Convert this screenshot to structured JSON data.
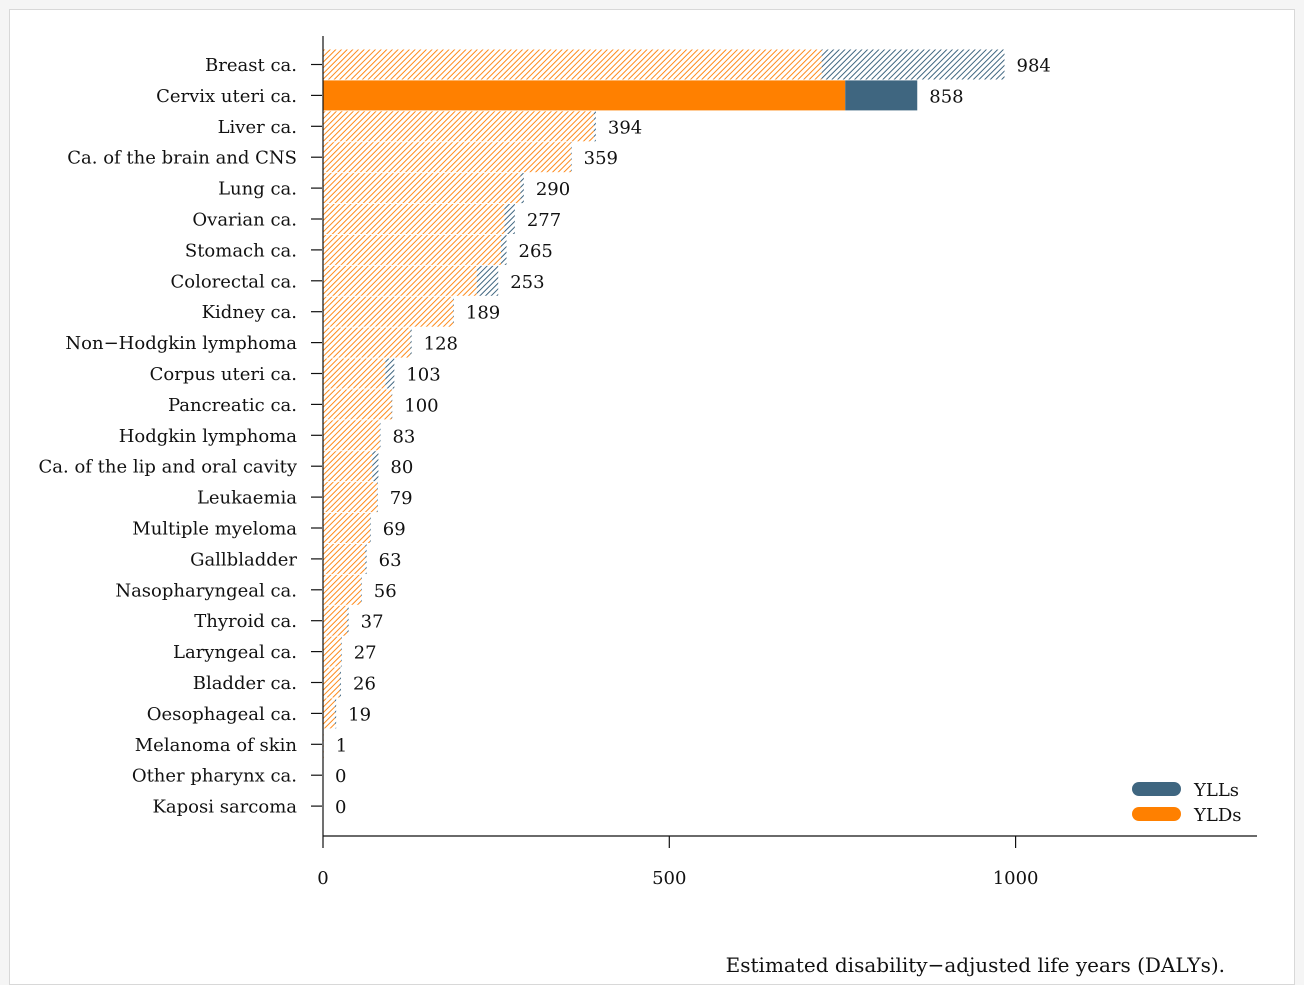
{
  "chart_data": {
    "type": "bar",
    "orientation": "horizontal",
    "stacked": true,
    "xlabel": "Estimated disability−adjusted life years (DALYs).",
    "xlim": [
      0,
      1350
    ],
    "xticks": [
      0,
      500,
      1000
    ],
    "legend_position": "bottom-right",
    "grid": false,
    "categories": [
      "Breast ca.",
      "Cervix uteri ca.",
      "Liver ca.",
      "Ca. of the brain and CNS",
      "Lung ca.",
      "Ovarian ca.",
      "Stomach ca.",
      "Colorectal ca.",
      "Kidney ca.",
      "Non−Hodgkin lymphoma",
      "Corpus uteri ca.",
      "Pancreatic ca.",
      "Hodgkin lymphoma",
      "Ca. of the lip and oral cavity",
      "Leukaemia",
      "Multiple myeloma",
      "Gallbladder",
      "Nasopharyngeal ca.",
      "Thyroid ca.",
      "Laryngeal ca.",
      "Bladder ca.",
      "Oesophageal ca.",
      "Melanoma of skin",
      "Other pharynx ca.",
      "Kaposi sarcoma"
    ],
    "totals": [
      984,
      858,
      394,
      359,
      290,
      277,
      265,
      253,
      189,
      128,
      103,
      100,
      83,
      80,
      79,
      69,
      63,
      56,
      37,
      27,
      26,
      19,
      1,
      0,
      0
    ],
    "highlighted": [
      "Cervix uteri ca."
    ],
    "series": [
      {
        "name": "YLDs",
        "color": "#ff8000",
        "values": [
          720,
          754,
          391,
          358,
          285,
          262,
          257,
          222,
          188,
          126,
          90,
          99,
          82,
          71,
          78,
          68,
          61,
          55,
          35,
          26,
          24,
          17,
          1,
          0,
          0
        ]
      },
      {
        "name": "YLLs",
        "color": "#3f6680",
        "values": [
          264,
          104,
          3,
          1,
          5,
          15,
          8,
          31,
          1,
          2,
          13,
          1,
          1,
          9,
          1,
          1,
          2,
          1,
          2,
          1,
          2,
          2,
          0,
          0,
          0
        ]
      }
    ]
  }
}
